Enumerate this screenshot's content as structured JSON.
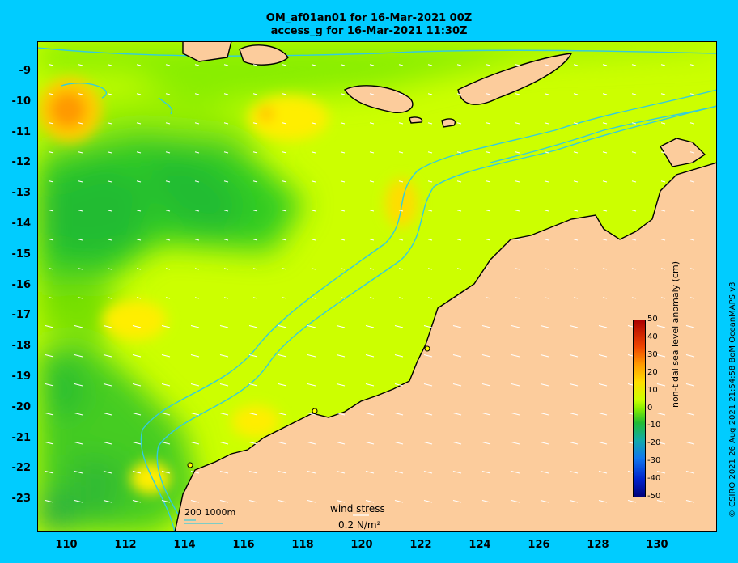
{
  "title_line1": "OM_af01an01 for 16-Mar-2021 00Z",
  "title_line2": "access_g for 16-Mar-2021 11:30Z",
  "y_ticks": [
    "-9",
    "-10",
    "-11",
    "-12",
    "-13",
    "-14",
    "-15",
    "-16",
    "-17",
    "-18",
    "-19",
    "-20",
    "-21",
    "-22",
    "-23"
  ],
  "x_ticks": [
    "110",
    "112",
    "114",
    "116",
    "118",
    "120",
    "122",
    "124",
    "126",
    "128",
    "130"
  ],
  "colorbar": {
    "label": "non-tidal sea level anomaly (cm)",
    "ticks": [
      "50",
      "40",
      "30",
      "20",
      "10",
      "0",
      "-10",
      "-20",
      "-30",
      "-40",
      "-50"
    ],
    "range": [
      -50,
      50
    ]
  },
  "credit": "© CSIRO 2021  26 Aug 2021 21:54:58 BoM OceanMAPS v3",
  "scale": {
    "text": "200  1000m"
  },
  "wind": {
    "label": "wind stress",
    "value": "0.2 N/m²"
  },
  "colors": {
    "land": "#fccc9c",
    "isobath": "#33ccdd",
    "background": "#00ccff",
    "sea_base": "#ccff00"
  }
}
